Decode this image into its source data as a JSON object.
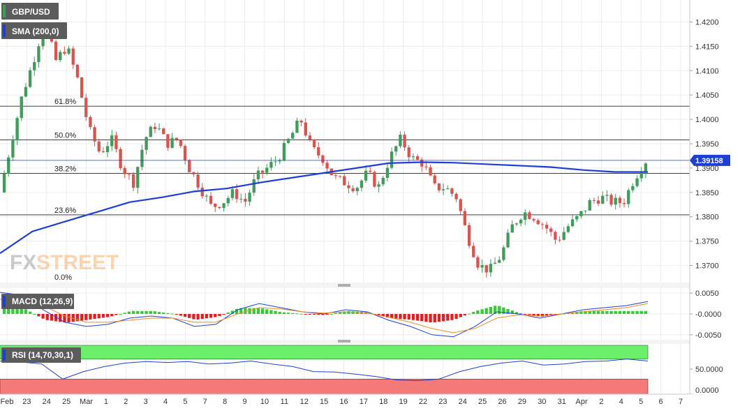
{
  "chart_data": [
    {
      "type": "candlestick",
      "symbol": "GBP/USD",
      "indicator_label": "SMA (200,0)",
      "watermark": {
        "prefix": "FX",
        "suffix": "STREET"
      },
      "ylim": [
        1.3665,
        1.4245
      ],
      "y_ticks": [
        "1.4200",
        "1.4150",
        "1.4100",
        "1.4050",
        "1.4000",
        "1.3950",
        "1.3900",
        "1.3850",
        "1.3800",
        "1.3750",
        "1.3700"
      ],
      "last_price": "1.39158",
      "last_price_value": 1.39158,
      "fibonacci": [
        {
          "label": "61.8%",
          "value": 1.4027
        },
        {
          "label": "50.0%",
          "value": 1.3958
        },
        {
          "label": "38.2%",
          "value": 1.3889
        },
        {
          "label": "23.6%",
          "value": 1.3804
        },
        {
          "label": "0.0%",
          "value": 1.3665
        }
      ],
      "price_path": [
        1.385,
        1.395,
        1.405,
        1.412,
        1.42,
        1.412,
        1.415,
        1.408,
        1.398,
        1.393,
        1.396,
        1.39,
        1.387,
        1.396,
        1.399,
        1.395,
        1.396,
        1.39,
        1.386,
        1.382,
        1.383,
        1.385,
        1.383,
        1.388,
        1.39,
        1.392,
        1.396,
        1.4,
        1.394,
        1.392,
        1.388,
        1.387,
        1.386,
        1.389,
        1.386,
        1.392,
        1.396,
        1.392,
        1.391,
        1.386,
        1.386,
        1.384,
        1.376,
        1.37,
        1.369,
        1.372,
        1.378,
        1.381,
        1.38,
        1.378,
        1.375,
        1.378,
        1.38,
        1.383,
        1.384,
        1.383,
        1.383,
        1.388,
        1.3915
      ],
      "sma200": [
        1.3725,
        1.377,
        1.379,
        1.381,
        1.383,
        1.384,
        1.3852,
        1.3858,
        1.387,
        1.388,
        1.389,
        1.39,
        1.391,
        1.3912,
        1.3911,
        1.3908,
        1.3905,
        1.3902,
        1.3896,
        1.3892,
        1.3892
      ]
    },
    {
      "type": "macd",
      "label": "MACD (12,26,9)",
      "ylim": [
        -0.0062,
        0.0062
      ],
      "y_ticks": [
        "0.0050",
        "-0.0000",
        "-0.0050"
      ],
      "macd": [
        0.0052,
        0.0045,
        0.001,
        -0.002,
        -0.003,
        -0.0025,
        -0.001,
        -0.0005,
        -0.001,
        -0.003,
        -0.0025,
        0.001,
        0.0025,
        0.0015,
        0.0005,
        0.0,
        0.001,
        0.0005,
        -0.0015,
        -0.003,
        -0.005,
        -0.0055,
        -0.003,
        0.0005,
        0.0,
        -0.001,
        0.0,
        0.001,
        0.0015,
        0.002,
        0.003
      ],
      "signal": [
        0.0035,
        0.0035,
        0.002,
        -0.0005,
        -0.002,
        -0.002,
        -0.0015,
        -0.001,
        -0.001,
        -0.002,
        -0.002,
        0.0,
        0.0015,
        0.0012,
        0.0005,
        0.0002,
        0.0005,
        0.0002,
        -0.0008,
        -0.002,
        -0.0035,
        -0.0045,
        -0.0035,
        -0.001,
        -0.0002,
        -0.0005,
        0.0,
        0.0005,
        0.001,
        0.0015,
        0.0025
      ]
    },
    {
      "type": "rsi",
      "label": "RSI (14,70,30,1)",
      "ylim": [
        0,
        100
      ],
      "y_ticks": [
        "50.0000",
        "0.0000"
      ],
      "overbought": 70,
      "oversold": 30,
      "values": [
        66,
        64,
        60,
        30,
        45,
        55,
        62,
        65,
        63,
        65,
        60,
        62,
        66,
        60,
        55,
        45,
        44,
        40,
        35,
        28,
        27,
        30,
        45,
        55,
        62,
        66,
        58,
        60,
        65,
        66,
        70,
        66
      ]
    }
  ],
  "x_axis_labels": [
    "Feb",
    "23",
    "24",
    "25",
    "Mar",
    "1",
    "2",
    "3",
    "4",
    "5",
    "7",
    "8",
    "9",
    "10",
    "11",
    "12",
    "15",
    "16",
    "17",
    "18",
    "19",
    "22",
    "23",
    "24",
    "25",
    "26",
    "29",
    "30",
    "31",
    "Apr",
    "2",
    "4",
    "5",
    "6",
    "7"
  ],
  "colors": {
    "up": "#3f9c5a",
    "down": "#d9534f",
    "sma": "#1e3fd6",
    "macd_line": "#1e3fd6",
    "signal_line": "#f08a24",
    "hist_up": "#33cc33",
    "hist_down": "#e02020",
    "rsi_line": "#1e3fd6",
    "overbought_band": "#6cf06c",
    "oversold_band": "#f47a7a",
    "grid": "#ececec"
  }
}
